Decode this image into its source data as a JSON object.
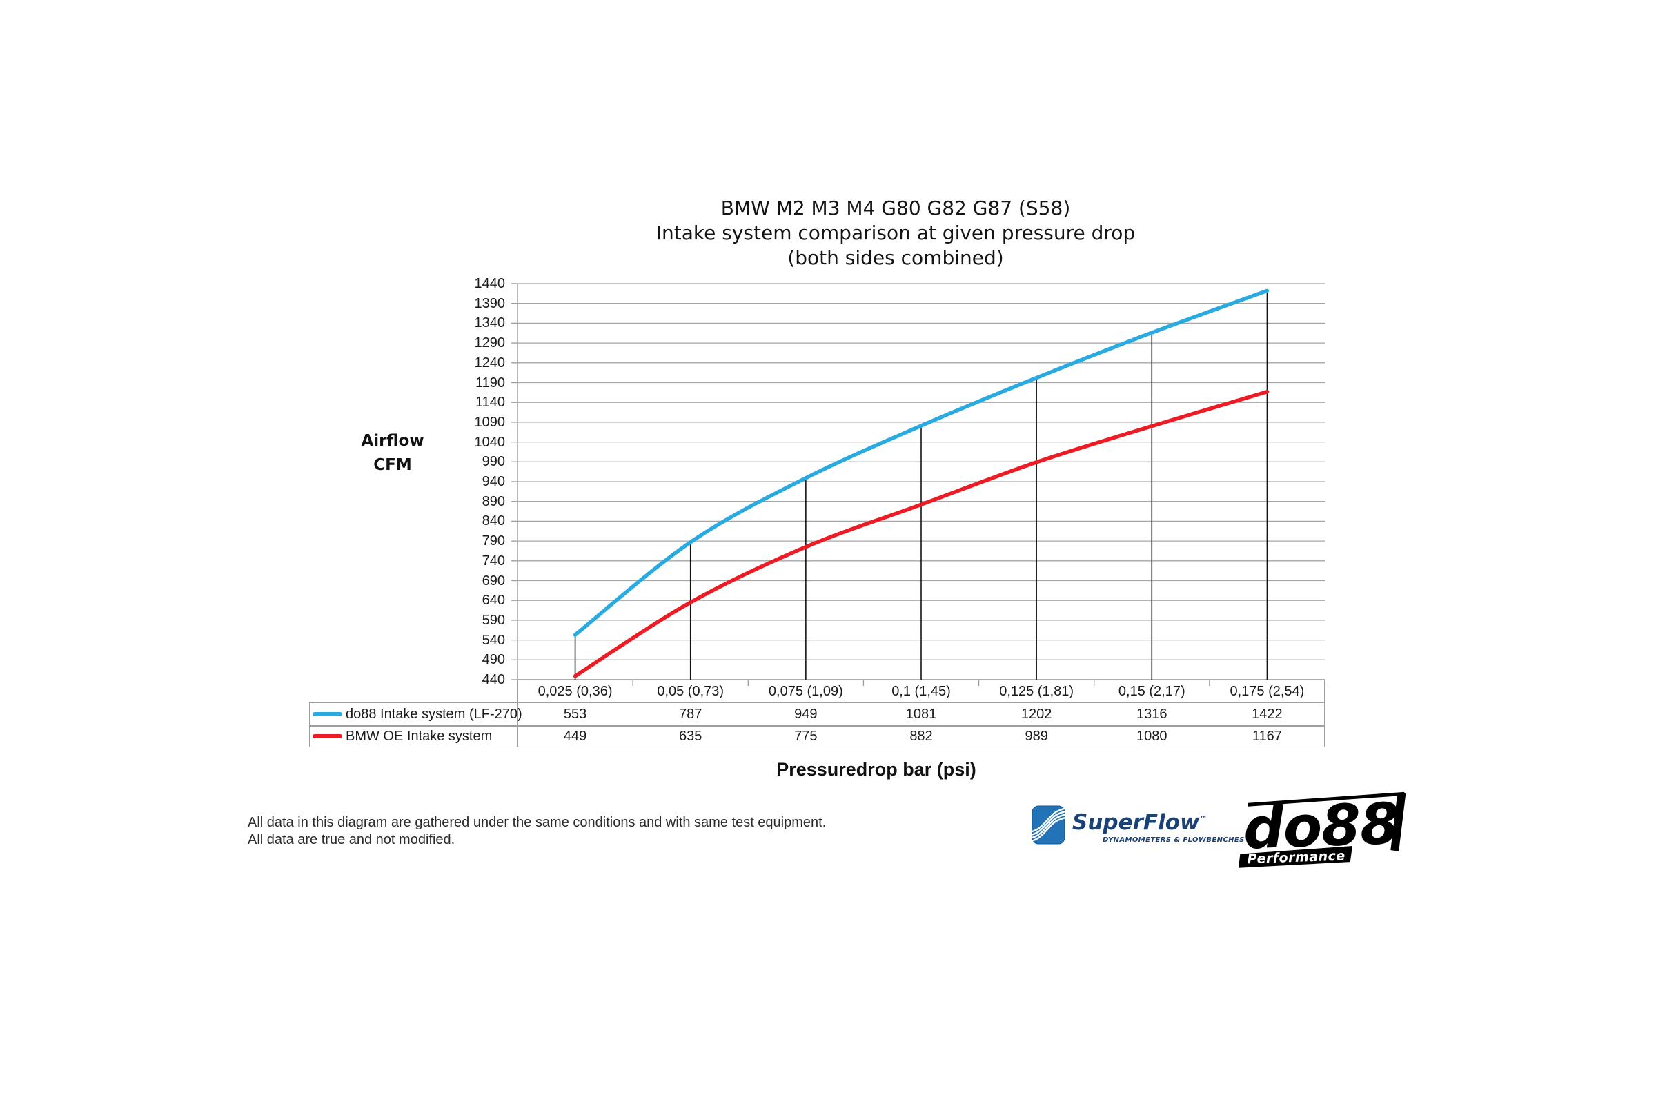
{
  "title_lines": [
    "BMW M2 M3 M4 G80 G82 G87 (S58)",
    "Intake system comparison at given pressure drop",
    "(both sides combined)"
  ],
  "y_axis_title_lines": [
    "Airflow",
    "CFM"
  ],
  "x_axis_title": "Pressuredrop bar (psi)",
  "footnote_lines": [
    "All data in this diagram are gathered under the same conditions and with same test equipment.",
    "All data are true and not modified."
  ],
  "chart_data": {
    "type": "line",
    "title": "BMW M2 M3 M4 G80 G82 G87 (S58) — Intake system comparison at given pressure drop (both sides combined)",
    "xlabel": "Pressuredrop bar (psi)",
    "ylabel": "Airflow CFM",
    "categories": [
      "0,025 (0,36)",
      "0,05 (0,73)",
      "0,075 (1,09)",
      "0,1 (1,45)",
      "0,125 (1,81)",
      "0,15 (2,17)",
      "0,175 (2,54)"
    ],
    "series": [
      {
        "name": "do88 Intake system (LF-270)",
        "color": "#29ABE2",
        "values": [
          553,
          787,
          949,
          1081,
          1202,
          1316,
          1422
        ]
      },
      {
        "name": "BMW OE Intake system",
        "color": "#ED1B24",
        "values": [
          449,
          635,
          775,
          882,
          989,
          1080,
          1167
        ]
      }
    ],
    "ylim": [
      440,
      1440
    ],
    "ytick_step": 50,
    "grid": "horizontal",
    "drop_lines": true,
    "smooth": true,
    "legend_position": "table-left"
  },
  "logos": {
    "superflow": {
      "wordmark": "SuperFlow",
      "tm": "™",
      "tagline": "DYNAMOMETERS & FLOWBENCHES"
    },
    "do88": {
      "wordmark": "do88",
      "tagline": "Performance"
    }
  },
  "colors": {
    "grid": "#A6A6A6",
    "axis": "#9A9A9A",
    "drop_line": "#141414",
    "table_border": "#9E9E9E",
    "superflow_navy": "#1A4276",
    "superflow_blue": "#2273B8"
  }
}
